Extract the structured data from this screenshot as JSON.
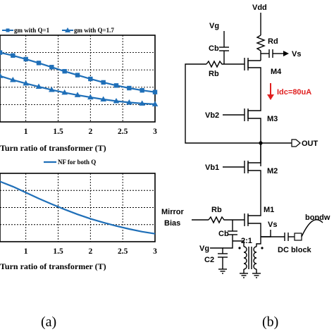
{
  "chart_data": [
    {
      "type": "line",
      "title": "",
      "xlabel": "Turn ratio of transformer (T)",
      "ylabel": "",
      "xlim": [
        0.6,
        3.0
      ],
      "ylim": [
        0,
        5
      ],
      "grid": true,
      "legend": "top",
      "x_tick_labels": [
        "1",
        "1.5",
        "2",
        "2.5",
        "3"
      ],
      "x": [
        0.6,
        0.8,
        1.0,
        1.2,
        1.4,
        1.6,
        1.8,
        2.0,
        2.2,
        2.4,
        2.6,
        2.8,
        3.0
      ],
      "series": [
        {
          "name": "gm with Q=1",
          "marker": "square",
          "color": "#1f6fb8",
          "values": [
            4.0,
            3.83,
            3.62,
            3.4,
            3.16,
            2.92,
            2.7,
            2.48,
            2.28,
            2.1,
            1.95,
            1.82,
            1.72
          ]
        },
        {
          "name": "gm with Q=1.7",
          "marker": "triangle",
          "color": "#1f6fb8",
          "values": [
            2.65,
            2.42,
            2.22,
            2.03,
            1.85,
            1.69,
            1.55,
            1.42,
            1.3,
            1.2,
            1.12,
            1.06,
            1.02
          ]
        }
      ]
    },
    {
      "type": "line",
      "title": "",
      "xlabel": "Turn ratio of transformer (T)",
      "ylabel": "",
      "xlim": [
        0.6,
        3.0
      ],
      "ylim": [
        0,
        5
      ],
      "grid": true,
      "legend": "top",
      "x_tick_labels": [
        "1",
        "1.5",
        "2",
        "2.5",
        "3"
      ],
      "x": [
        0.6,
        0.8,
        1.0,
        1.2,
        1.4,
        1.6,
        1.8,
        2.0,
        2.2,
        2.4,
        2.6,
        2.8,
        3.0
      ],
      "series": [
        {
          "name": "NF for both Q",
          "marker": "none",
          "color": "#1f6fb8",
          "values": [
            4.4,
            4.03,
            3.6,
            3.16,
            2.75,
            2.36,
            2.0,
            1.68,
            1.4,
            1.15,
            0.93,
            0.73,
            0.58
          ]
        }
      ]
    }
  ],
  "panel_labels": [
    "(a)",
    "(b)"
  ],
  "circuit": {
    "labels": {
      "vdd": "Vdd",
      "vg_top": "Vg",
      "cb_top": "Cb",
      "rd": "Rd",
      "vs_top": "Vs",
      "rb_top": "Rb",
      "m4": "M4",
      "idc": "Idc=80uA",
      "vb2": "Vb2",
      "m3": "M3",
      "out": "OUT",
      "vb1": "Vb1",
      "m2": "M2",
      "mirror": "Mirror",
      "bias": "Bias",
      "rb_bot": "Rb",
      "m1": "M1",
      "cb_bot": "Cb",
      "vs_bot": "Vs",
      "ratio": "2:1",
      "vg_bot": "Vg",
      "c2": "C2",
      "dc_block": "DC block",
      "bondwire": "bondw"
    },
    "colors": {
      "idc_arrow": "#e02020",
      "wire": "#000000"
    }
  }
}
